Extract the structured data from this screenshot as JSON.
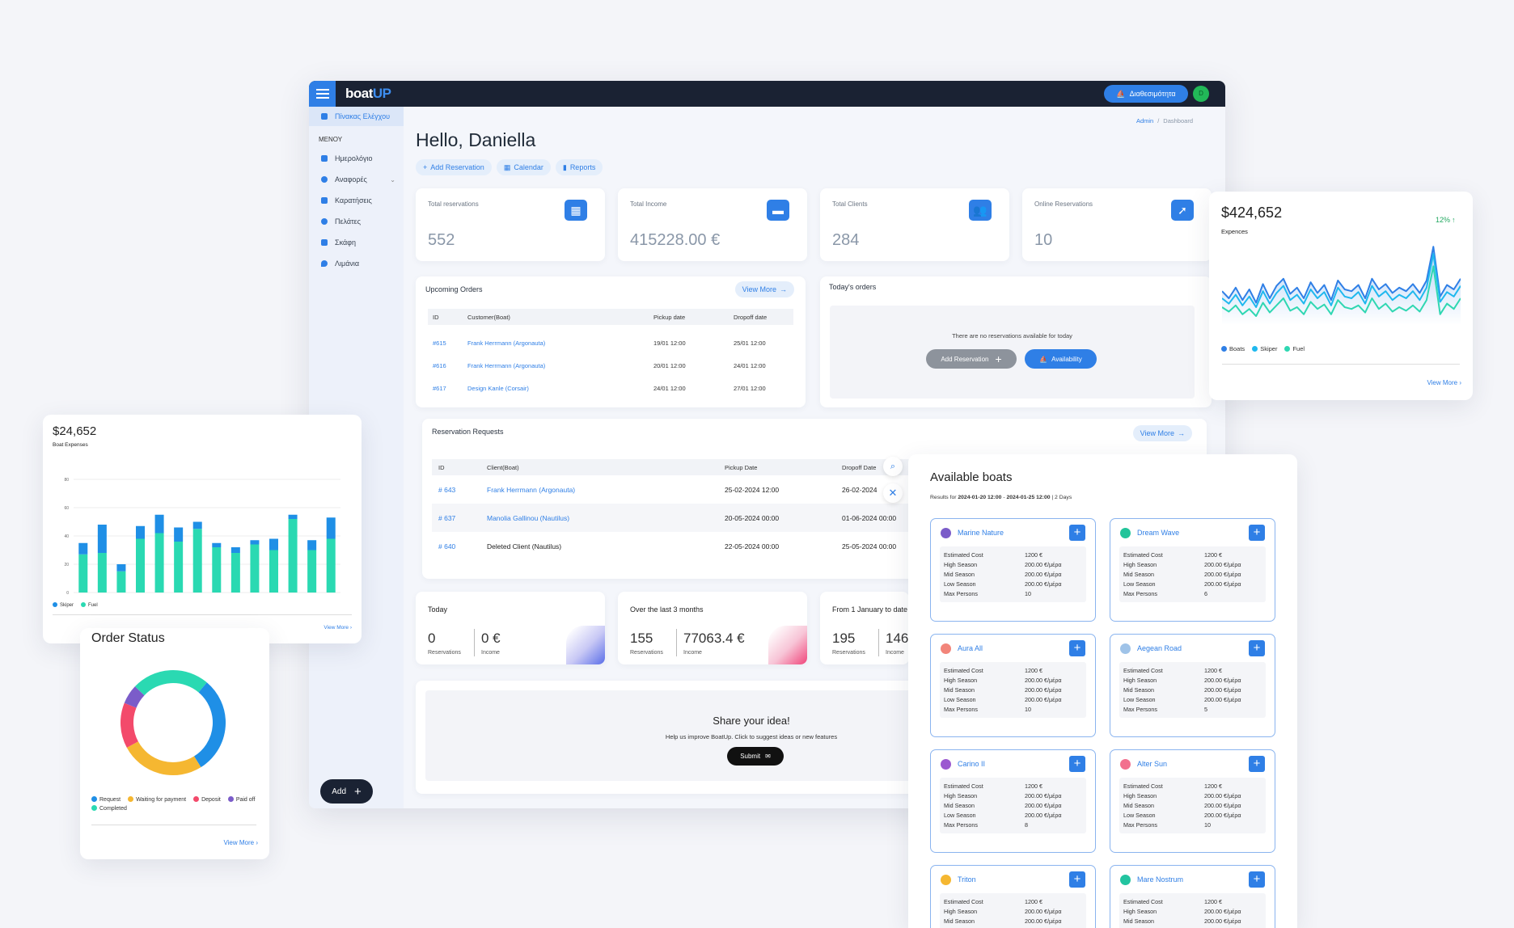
{
  "app": {
    "logo_a": "boat",
    "logo_b": "UP",
    "availability": "Διαθεσιμότητα",
    "avatar": "D"
  },
  "breadcrumb": {
    "a": "Admin",
    "sep": "/",
    "b": "Dashboard"
  },
  "sidebar": {
    "active": "Πίνακας Ελέγχου",
    "menu_label": "ΜΕΝΟΥ",
    "items": [
      "Ημερολόγιο",
      "Αναφορές",
      "Καρατήσεις",
      "Πελάτες",
      "Σκάφη",
      "Λιμάνια"
    ],
    "add": "Add"
  },
  "greeting": "Hello, Daniella",
  "quick": {
    "add_reservation": "Add Reservation",
    "calendar": "Calendar",
    "reports": "Reports"
  },
  "stats": [
    {
      "label": "Total reservations",
      "value": "552",
      "icon": "calendar-icon"
    },
    {
      "label": "Total Income",
      "value": "415228.00 €",
      "icon": "wallet-icon"
    },
    {
      "label": "Total Clients",
      "value": "284",
      "icon": "users-icon"
    },
    {
      "label": "Online Reservations",
      "value": "10",
      "icon": "cursor-icon"
    }
  ],
  "upcoming": {
    "title": "Upcoming Orders",
    "view_more": "View More",
    "cols": [
      "ID",
      "Customer(Boat)",
      "Pickup date",
      "Dropoff date"
    ],
    "rows": [
      [
        "#615",
        "Frank Herrmann (Argonauta)",
        "19/01 12:00",
        "25/01 12:00"
      ],
      [
        "#616",
        "Frank Herrmann (Argonauta)",
        "20/01 12:00",
        "24/01 12:00"
      ],
      [
        "#617",
        "Design Kanle (Corsair)",
        "24/01 12:00",
        "27/01 12:00"
      ]
    ]
  },
  "today_orders": {
    "title": "Today's orders",
    "empty": "There are no reservations available for today",
    "add": "Add Reservation",
    "availability": "Availability"
  },
  "requests": {
    "title": "Reservation Requests",
    "view_more": "View More",
    "cols": [
      "ID",
      "Client(Boat)",
      "Pickup Date",
      "Dropoff Date"
    ],
    "rows": [
      [
        "# 643",
        "Frank Herrmann (Argonauta)",
        "25-02-2024 12:00",
        "26-02-2024"
      ],
      [
        "# 637",
        "Manolia Gallinou (Nautilus)",
        "20-05-2024 00:00",
        "01-06-2024 00:00"
      ],
      [
        "# 640",
        "Deleted Client (Nautilus)",
        "22-05-2024 00:00",
        "25-05-2024 00:00"
      ]
    ]
  },
  "periods": [
    {
      "title": "Today",
      "res": "0",
      "income": "0 €"
    },
    {
      "title": "Over the last 3 months",
      "res": "155",
      "income": "77063.4 €"
    },
    {
      "title": "From 1 January to date",
      "res": "195",
      "income": "146"
    }
  ],
  "period_labels": {
    "res": "Reservations",
    "income": "Income"
  },
  "share": {
    "title": "Share your idea!",
    "text": "Help us improve BoatUp. Click to suggest ideas or new features",
    "submit": "Submit"
  },
  "expenses_card": {
    "value": "$424,652",
    "label": "Expences",
    "change": "12%",
    "legend": [
      "Boats",
      "Skiper",
      "Fuel"
    ],
    "view_more": "View More"
  },
  "boat_exp": {
    "value": "$24,652",
    "label": "Boat Expenses",
    "legend": [
      "Skiper",
      "Fuel"
    ],
    "view_more": "View More"
  },
  "order_status": {
    "title": "Order Status",
    "legend": [
      "Request",
      "Waiting for payment",
      "Deposit",
      "Paid off",
      "Completed"
    ],
    "view_more": "View More"
  },
  "available": {
    "title": "Available boats",
    "results_prefix": "Results for",
    "from": "2024-01-20 12:00",
    "dash": "-",
    "to": "2024-01-25 12:00",
    "days": "| 2 Days",
    "fields": [
      "Estimated Cost",
      "High Season",
      "Mid Season",
      "Low Season",
      "Max Persons"
    ],
    "boats": [
      {
        "name": "Marine Nature",
        "color": "#7b5cc9",
        "v": [
          "1200 €",
          "200.00 €/μέρα",
          "200.00 €/μέρα",
          "200.00 €/μέρα",
          "10"
        ]
      },
      {
        "name": "Dream Wave",
        "color": "#22c49a",
        "v": [
          "1200 €",
          "200.00 €/μέρα",
          "200.00 €/μέρα",
          "200.00 €/μέρα",
          "6"
        ]
      },
      {
        "name": "Aura All",
        "color": "#f2857a",
        "v": [
          "1200 €",
          "200.00 €/μέρα",
          "200.00 €/μέρα",
          "200.00 €/μέρα",
          "10"
        ]
      },
      {
        "name": "Aegean Road",
        "color": "#9fc3e8",
        "v": [
          "1200 €",
          "200.00 €/μέρα",
          "200.00 €/μέρα",
          "200.00 €/μέρα",
          "5"
        ]
      },
      {
        "name": "Carino II",
        "color": "#9b59d0",
        "v": [
          "1200 €",
          "200.00 €/μέρα",
          "200.00 €/μέρα",
          "200.00 €/μέρα",
          "8"
        ]
      },
      {
        "name": "Alter Sun",
        "color": "#f2708e",
        "v": [
          "1200 €",
          "200.00 €/μέρα",
          "200.00 €/μέρα",
          "200.00 €/μέρα",
          "10"
        ]
      },
      {
        "name": "Triton",
        "color": "#f5b731",
        "v": [
          "1200 €",
          "200.00 €/μέρα",
          "200.00 €/μέρα"
        ]
      },
      {
        "name": "Mare Nostrum",
        "color": "#22c4a0",
        "v": [
          "1200 €",
          "200.00 €/μέρα",
          "200.00 €/μέρα"
        ]
      }
    ]
  },
  "chart_data": [
    {
      "type": "line",
      "series": [
        {
          "name": "Boats",
          "values": [
            38,
            30,
            42,
            28,
            40,
            25,
            46,
            30,
            44,
            52,
            35,
            42,
            30,
            48,
            36,
            45,
            28,
            50,
            40,
            38,
            45,
            30,
            52,
            40,
            46,
            36,
            42,
            38,
            46,
            36,
            50,
            88,
            32,
            45,
            40,
            52
          ]
        },
        {
          "name": "Skiper",
          "values": [
            30,
            24,
            34,
            22,
            32,
            20,
            38,
            24,
            36,
            44,
            28,
            34,
            24,
            40,
            30,
            37,
            22,
            42,
            32,
            30,
            37,
            24,
            44,
            32,
            38,
            28,
            34,
            30,
            38,
            28,
            42,
            80,
            26,
            37,
            32,
            44
          ]
        },
        {
          "name": "Fuel",
          "values": [
            20,
            15,
            22,
            12,
            18,
            10,
            25,
            14,
            22,
            30,
            16,
            20,
            12,
            26,
            18,
            23,
            12,
            28,
            20,
            18,
            22,
            14,
            30,
            18,
            24,
            15,
            20,
            16,
            22,
            15,
            28,
            66,
            12,
            24,
            18,
            30
          ]
        }
      ],
      "colors": [
        "#2f7fe6",
        "#1fb8ee",
        "#2fd7b2"
      ]
    },
    {
      "type": "bar",
      "y_ticks": [
        "0",
        "20",
        "40",
        "60",
        "80"
      ],
      "ylim": [
        0,
        80
      ],
      "series": [
        {
          "name": "Skiper",
          "values": [
            8,
            20,
            5,
            9,
            13,
            10,
            5,
            3,
            4,
            3,
            8,
            3,
            7,
            15
          ]
        },
        {
          "name": "Fuel",
          "values": [
            27,
            28,
            15,
            38,
            42,
            36,
            45,
            32,
            28,
            34,
            30,
            52,
            30,
            38
          ]
        }
      ],
      "colors": [
        "#1f8fe6",
        "#2ad9b2"
      ]
    },
    {
      "type": "pie",
      "series": [
        {
          "name": "Request",
          "value": 30
        },
        {
          "name": "Waiting for payment",
          "value": 26
        },
        {
          "name": "Deposit",
          "value": 14
        },
        {
          "name": "Paid off",
          "value": 6
        },
        {
          "name": "Completed",
          "value": 24
        }
      ],
      "colors": [
        "#1f8fe6",
        "#f5b731",
        "#f34a6b",
        "#7b5cc9",
        "#2ad9b2"
      ]
    }
  ]
}
